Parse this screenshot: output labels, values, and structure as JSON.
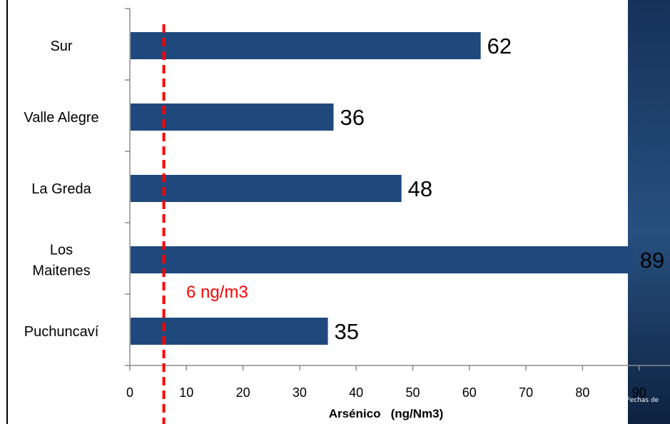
{
  "chart_data": {
    "type": "bar",
    "orientation": "horizontal",
    "categories": [
      "Sur",
      "Valle Alegre",
      "La Greda",
      "Los Maitenes",
      "Puchuncaví"
    ],
    "category_lines": [
      [
        "Sur"
      ],
      [
        "Valle Alegre"
      ],
      [
        "La Greda"
      ],
      [
        "Los",
        "Maitenes"
      ],
      [
        "Puchuncaví"
      ]
    ],
    "values": [
      62,
      36,
      48,
      89,
      35
    ],
    "data_labels": [
      "62",
      "36",
      "48",
      "89",
      "35"
    ],
    "xlabel": "Arsénico   (ng/Nm3)",
    "ylabel": "",
    "xlim": [
      0,
      90
    ],
    "xticks": [
      0,
      10,
      20,
      30,
      40,
      50,
      60,
      70,
      80,
      90
    ],
    "grid": false,
    "bar_color": "#1f497d",
    "reference_line": {
      "value": 6,
      "label": "6 ng/m3",
      "color": "#ff0000",
      "style": "dashed"
    }
  },
  "background": {
    "partial_caption": "Fechas de",
    "texture_color": "#1c3a63"
  }
}
